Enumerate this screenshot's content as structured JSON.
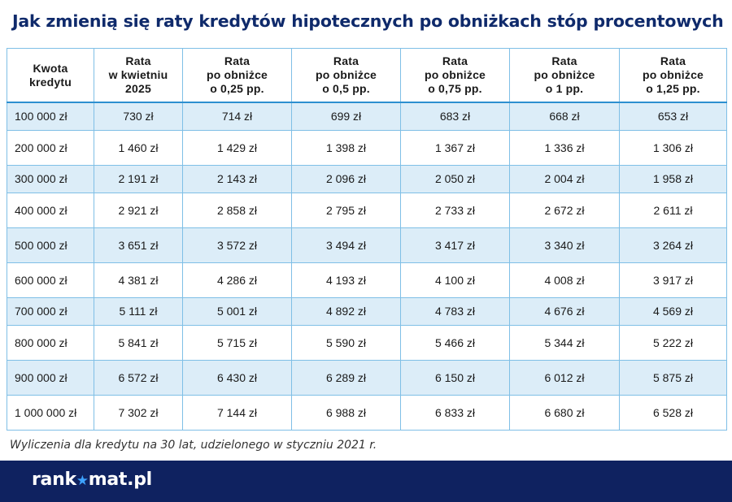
{
  "title": "Jak zmienią się raty kredytów hipotecznych po obniżkach stóp procentowych",
  "table": {
    "headers": [
      "Kwota\nkredytu",
      "Rata\nw kwietniu\n2025",
      "Rata\npo obniżce\no 0,25 pp.",
      "Rata\npo obniżce\no 0,5 pp.",
      "Rata\npo obniżce\no 0,75 pp.",
      "Rata\npo obniżce\no 1 pp.",
      "Rata\npo obniżce\no 1,25 pp."
    ],
    "rows": [
      [
        "100 000 zł",
        "730 zł",
        "714 zł",
        "699 zł",
        "683 zł",
        "668 zł",
        "653 zł"
      ],
      [
        "200 000 zł",
        "1 460 zł",
        "1 429 zł",
        "1 398 zł",
        "1 367 zł",
        "1 336 zł",
        "1 306 zł"
      ],
      [
        "300 000 zł",
        "2 191 zł",
        "2 143 zł",
        "2 096 zł",
        "2 050 zł",
        "2 004 zł",
        "1 958 zł"
      ],
      [
        "400 000 zł",
        "2 921 zł",
        "2 858 zł",
        "2 795 zł",
        "2 733 zł",
        "2 672 zł",
        "2 611 zł"
      ],
      [
        "500 000 zł",
        "3 651 zł",
        "3 572 zł",
        "3 494 zł",
        "3 417 zł",
        "3 340 zł",
        "3 264 zł"
      ],
      [
        "600 000 zł",
        "4 381 zł",
        "4 286 zł",
        "4 193 zł",
        "4 100 zł",
        "4 008 zł",
        "3 917 zł"
      ],
      [
        "700 000 zł",
        "5 111 zł",
        "5 001 zł",
        "4 892 zł",
        "4 783 zł",
        "4 676 zł",
        "4 569 zł"
      ],
      [
        "800 000 zł",
        "5 841 zł",
        "5 715 zł",
        "5 590 zł",
        "5 466 zł",
        "5 344 zł",
        "5 222 zł"
      ],
      [
        "900 000 zł",
        "6 572 zł",
        "6 430 zł",
        "6 289 zł",
        "6 150 zł",
        "6 012 zł",
        "5 875 zł"
      ],
      [
        "1 000 000 zł",
        "7 302 zł",
        "7 144 zł",
        "6 988 zł",
        "6 833 zł",
        "6 680 zł",
        "6 528 zł"
      ]
    ]
  },
  "footnote": "Wyliczenia dla  kredytu na 30 lat, udzielonego w styczniu 2021 r.",
  "footer": {
    "logo_before": "rank",
    "logo_after": "mat.pl",
    "logo_icon": "star-icon"
  },
  "colors": {
    "title": "#0f2a6b",
    "footer_bg": "#0f2260",
    "row_stripe": "#dcedf8",
    "grid": "#7fbfe6"
  }
}
